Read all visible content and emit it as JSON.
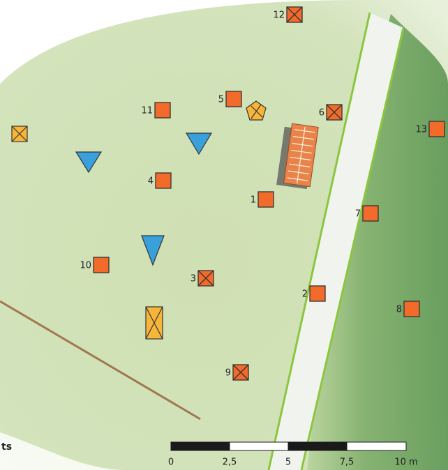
{
  "markers": [
    {
      "label": "12",
      "kind": "crossed"
    },
    {
      "label": "5",
      "kind": "plain"
    },
    {
      "label": "11",
      "kind": "plain"
    },
    {
      "label": "6",
      "kind": "crossed"
    },
    {
      "label": "13",
      "kind": "plain"
    },
    {
      "label": "4",
      "kind": "plain"
    },
    {
      "label": "1",
      "kind": "plain"
    },
    {
      "label": "7",
      "kind": "plain"
    },
    {
      "label": "10",
      "kind": "plain"
    },
    {
      "label": "3",
      "kind": "crossed"
    },
    {
      "label": "2",
      "kind": "plain"
    },
    {
      "label": "8",
      "kind": "plain"
    },
    {
      "label": "9",
      "kind": "crossed"
    }
  ],
  "scale_bar": {
    "labels": [
      "0",
      "2,5",
      "5",
      "7,5",
      "10 m"
    ]
  },
  "legend_fragment": "ts"
}
